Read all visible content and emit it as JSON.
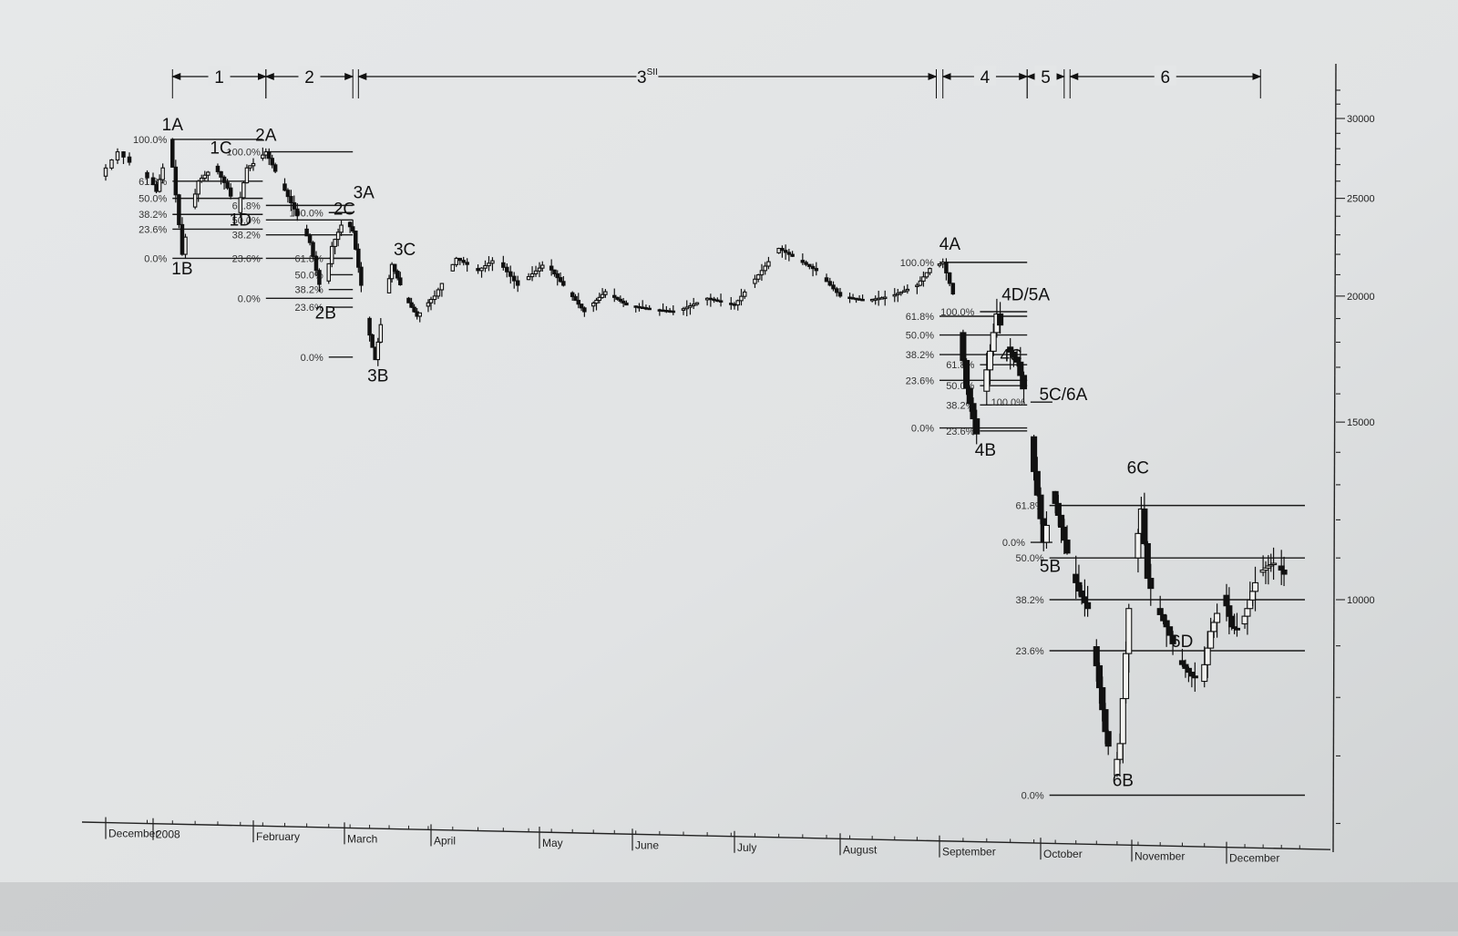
{
  "chart_data": {
    "type": "candlestick",
    "title": "",
    "xlabel": "",
    "ylabel": "",
    "y_scale": "log",
    "ylim": [
      5600,
      32000
    ],
    "y_ticks": [
      {
        "value": 30000,
        "label": "30000"
      },
      {
        "value": 25000,
        "label": "25000"
      },
      {
        "value": 20000,
        "label": "20000"
      },
      {
        "value": 15000,
        "label": "15000"
      },
      {
        "value": 10000,
        "label": "10000"
      }
    ],
    "x_ticks": [
      {
        "label": "December",
        "date": "2007-12-24"
      },
      {
        "label": "2008",
        "date": "2008-01-01"
      },
      {
        "label": "February",
        "date": "2008-02-01"
      },
      {
        "label": "March",
        "date": "2008-03-01"
      },
      {
        "label": "April",
        "date": "2008-04-01"
      },
      {
        "label": "May",
        "date": "2008-05-01"
      },
      {
        "label": "June",
        "date": "2008-06-01"
      },
      {
        "label": "July",
        "date": "2008-07-01"
      },
      {
        "label": "August",
        "date": "2008-08-01"
      },
      {
        "label": "September",
        "date": "2008-09-01"
      },
      {
        "label": "October",
        "date": "2008-10-01"
      },
      {
        "label": "November",
        "date": "2008-11-01"
      },
      {
        "label": "December",
        "date": "2008-12-01"
      }
    ],
    "waves": [
      {
        "label": "1",
        "from": "2008-01-07",
        "to": "2008-02-05"
      },
      {
        "label": "2",
        "from": "2008-02-05",
        "to": "2008-03-04"
      },
      {
        "label": "3",
        "superscript": "SII",
        "from": "2008-03-06",
        "to": "2008-08-31"
      },
      {
        "label": "4",
        "from": "2008-09-02",
        "to": "2008-09-27"
      },
      {
        "label": "5",
        "from": "2008-09-27",
        "to": "2008-10-09"
      },
      {
        "label": "6",
        "from": "2008-10-11",
        "to": "2008-12-14"
      }
    ],
    "wave_points": [
      {
        "label": "1A",
        "date": "2008-01-07",
        "value": 28600
      },
      {
        "label": "1B",
        "date": "2008-01-10",
        "value": 22000
      },
      {
        "label": "1C",
        "date": "2008-01-22",
        "value": 27000
      },
      {
        "label": "1D",
        "date": "2008-01-28",
        "value": 24200
      },
      {
        "label": "2A",
        "date": "2008-02-05",
        "value": 27800
      },
      {
        "label": "2B",
        "date": "2008-02-24",
        "value": 19900
      },
      {
        "label": "2C",
        "date": "2008-03-01",
        "value": 23900
      },
      {
        "label": "3A",
        "date": "2008-03-04",
        "value": 24300
      },
      {
        "label": "3B",
        "date": "2008-03-13",
        "value": 17300
      },
      {
        "label": "3C",
        "date": "2008-03-18",
        "value": 21600
      },
      {
        "label": "4A",
        "date": "2008-09-03",
        "value": 21600
      },
      {
        "label": "4D/5A",
        "date": "2008-09-19",
        "value": 19400
      },
      {
        "label": "4C",
        "date": "2008-09-19",
        "value": 17600
      },
      {
        "label": "4B",
        "date": "2008-09-13",
        "value": 14600
      },
      {
        "label": "5C/6A",
        "date": "2008-09-28",
        "value": 15900
      },
      {
        "label": "5B",
        "date": "2008-10-03",
        "value": 11200
      },
      {
        "label": "6C",
        "date": "2008-10-31",
        "value": 12900
      },
      {
        "label": "6D",
        "date": "2008-11-10",
        "value": 9200
      },
      {
        "label": "6B",
        "date": "2008-10-29",
        "value": 6900
      }
    ],
    "fib_retracements": [
      {
        "from": "2008-01-07",
        "to": "2008-02-04",
        "levels": [
          {
            "label": "100.0%",
            "value": 28600
          },
          {
            "label": "61.8%",
            "value": 26000
          },
          {
            "label": "50.0%",
            "value": 25000
          },
          {
            "label": "38.2%",
            "value": 24100
          },
          {
            "label": "23.6%",
            "value": 23300
          },
          {
            "label": "0.0%",
            "value": 21800
          }
        ]
      },
      {
        "from": "2008-02-05",
        "to": "2008-03-04",
        "levels": [
          {
            "label": "100.0%",
            "value": 27800
          },
          {
            "label": "61.8%",
            "value": 24600
          },
          {
            "label": "50.0%",
            "value": 23800
          },
          {
            "label": "38.2%",
            "value": 23000
          },
          {
            "label": "23.6%",
            "value": 21800
          },
          {
            "label": "0.0%",
            "value": 19900
          }
        ]
      },
      {
        "from": "2008-02-25",
        "to": "2008-03-04",
        "levels": [
          {
            "label": "100.0%",
            "value": 24200
          },
          {
            "label": "61.8%",
            "value": 21800
          },
          {
            "label": "50.0%",
            "value": 21000
          },
          {
            "label": "38.2%",
            "value": 20300
          },
          {
            "label": "23.6%",
            "value": 19500
          },
          {
            "label": "0.0%",
            "value": 17400
          }
        ]
      },
      {
        "from": "2008-09-01",
        "to": "2008-09-27",
        "levels": [
          {
            "label": "100.0%",
            "value": 21600
          },
          {
            "label": "61.8%",
            "value": 19100
          },
          {
            "label": "50.0%",
            "value": 18300
          },
          {
            "label": "38.2%",
            "value": 17500
          },
          {
            "label": "23.6%",
            "value": 16500
          },
          {
            "label": "0.0%",
            "value": 14800
          }
        ]
      },
      {
        "from": "2008-09-13",
        "to": "2008-09-27",
        "levels": [
          {
            "label": "100.0%",
            "value": 19300
          },
          {
            "label": "61.8%",
            "value": 17100
          },
          {
            "label": "50.0%",
            "value": 16300
          },
          {
            "label": "38.2%",
            "value": 15600
          },
          {
            "label": "23.6%",
            "value": 14700
          }
        ]
      },
      {
        "from": "2008-09-28",
        "to": "2008-10-05",
        "levels": [
          {
            "label": "100.0%",
            "value": 15700
          },
          {
            "label": "0.0%",
            "value": 11400
          }
        ]
      },
      {
        "from": "2008-10-04",
        "to": "2008-12-31",
        "levels": [
          {
            "label": "61.8%",
            "value": 12400
          },
          {
            "label": "50.0%",
            "value": 11000
          },
          {
            "label": "38.2%",
            "value": 10000
          },
          {
            "label": "23.6%",
            "value": 8900
          },
          {
            "label": "0.0%",
            "value": 6400
          }
        ]
      }
    ],
    "price_path": [
      {
        "date": "2007-12-24",
        "value": 26300
      },
      {
        "date": "2007-12-27",
        "value": 27800
      },
      {
        "date": "2008-01-01",
        "value": 26200
      },
      {
        "date": "2008-01-03",
        "value": 25400
      },
      {
        "date": "2008-01-05",
        "value": 26800
      },
      {
        "date": "2008-01-07",
        "value": 28600
      },
      {
        "date": "2008-01-09",
        "value": 25200
      },
      {
        "date": "2008-01-11",
        "value": 22000
      },
      {
        "date": "2008-01-13",
        "value": 23800
      },
      {
        "date": "2008-01-16",
        "value": 26000
      },
      {
        "date": "2008-01-21",
        "value": 26900
      },
      {
        "date": "2008-01-25",
        "value": 25600
      },
      {
        "date": "2008-01-28",
        "value": 24200
      },
      {
        "date": "2008-01-31",
        "value": 26800
      },
      {
        "date": "2008-02-03",
        "value": 27200
      },
      {
        "date": "2008-02-06",
        "value": 27800
      },
      {
        "date": "2008-02-10",
        "value": 26200
      },
      {
        "date": "2008-02-15",
        "value": 24400
      },
      {
        "date": "2008-02-20",
        "value": 22600
      },
      {
        "date": "2008-02-24",
        "value": 19900
      },
      {
        "date": "2008-02-27",
        "value": 22400
      },
      {
        "date": "2008-03-02",
        "value": 23900
      },
      {
        "date": "2008-03-05",
        "value": 23200
      },
      {
        "date": "2008-03-08",
        "value": 20500
      },
      {
        "date": "2008-03-11",
        "value": 18300
      },
      {
        "date": "2008-03-13",
        "value": 17300
      },
      {
        "date": "2008-03-16",
        "value": 19500
      },
      {
        "date": "2008-03-19",
        "value": 21500
      },
      {
        "date": "2008-03-24",
        "value": 19900
      },
      {
        "date": "2008-03-28",
        "value": 19100
      },
      {
        "date": "2008-04-03",
        "value": 20000
      },
      {
        "date": "2008-04-09",
        "value": 21800
      },
      {
        "date": "2008-04-15",
        "value": 21200
      },
      {
        "date": "2008-04-20",
        "value": 21800
      },
      {
        "date": "2008-04-26",
        "value": 20500
      },
      {
        "date": "2008-05-04",
        "value": 21600
      },
      {
        "date": "2008-05-10",
        "value": 20500
      },
      {
        "date": "2008-05-17",
        "value": 19300
      },
      {
        "date": "2008-05-24",
        "value": 20200
      },
      {
        "date": "2008-05-31",
        "value": 19600
      },
      {
        "date": "2008-06-08",
        "value": 19400
      },
      {
        "date": "2008-06-15",
        "value": 19300
      },
      {
        "date": "2008-06-24",
        "value": 19900
      },
      {
        "date": "2008-07-02",
        "value": 19600
      },
      {
        "date": "2008-07-10",
        "value": 21200
      },
      {
        "date": "2008-07-15",
        "value": 22300
      },
      {
        "date": "2008-07-20",
        "value": 21800
      },
      {
        "date": "2008-07-26",
        "value": 21200
      },
      {
        "date": "2008-08-02",
        "value": 20000
      },
      {
        "date": "2008-08-10",
        "value": 19800
      },
      {
        "date": "2008-08-18",
        "value": 20000
      },
      {
        "date": "2008-08-26",
        "value": 20500
      },
      {
        "date": "2008-08-30",
        "value": 21300
      },
      {
        "date": "2008-09-03",
        "value": 21600
      },
      {
        "date": "2008-09-06",
        "value": 20100
      },
      {
        "date": "2008-09-08",
        "value": 18400
      },
      {
        "date": "2008-09-10",
        "value": 16200
      },
      {
        "date": "2008-09-13",
        "value": 14600
      },
      {
        "date": "2008-09-16",
        "value": 16900
      },
      {
        "date": "2008-09-19",
        "value": 19200
      },
      {
        "date": "2008-09-22",
        "value": 17800
      },
      {
        "date": "2008-09-25",
        "value": 17200
      },
      {
        "date": "2008-09-28",
        "value": 15700
      },
      {
        "date": "2008-09-30",
        "value": 13400
      },
      {
        "date": "2008-10-03",
        "value": 11400
      },
      {
        "date": "2008-10-06",
        "value": 12800
      },
      {
        "date": "2008-10-09",
        "value": 11800
      },
      {
        "date": "2008-10-12",
        "value": 10800
      },
      {
        "date": "2008-10-15",
        "value": 10200
      },
      {
        "date": "2008-10-18",
        "value": 9800
      },
      {
        "date": "2008-10-21",
        "value": 8600
      },
      {
        "date": "2008-10-24",
        "value": 7400
      },
      {
        "date": "2008-10-27",
        "value": 6700
      },
      {
        "date": "2008-10-29",
        "value": 7200
      },
      {
        "date": "2008-11-01",
        "value": 9800
      },
      {
        "date": "2008-11-03",
        "value": 11000
      },
      {
        "date": "2008-11-05",
        "value": 12300
      },
      {
        "date": "2008-11-07",
        "value": 10500
      },
      {
        "date": "2008-11-10",
        "value": 9800
      },
      {
        "date": "2008-11-13",
        "value": 9400
      },
      {
        "date": "2008-11-17",
        "value": 8700
      },
      {
        "date": "2008-11-21",
        "value": 8400
      },
      {
        "date": "2008-11-24",
        "value": 8300
      },
      {
        "date": "2008-11-27",
        "value": 9300
      },
      {
        "date": "2008-12-01",
        "value": 10100
      },
      {
        "date": "2008-12-04",
        "value": 9400
      },
      {
        "date": "2008-12-07",
        "value": 9300
      },
      {
        "date": "2008-12-10",
        "value": 9800
      },
      {
        "date": "2008-12-14",
        "value": 10600
      },
      {
        "date": "2008-12-18",
        "value": 10800
      },
      {
        "date": "2008-12-21",
        "value": 10900
      },
      {
        "date": "2008-12-24",
        "value": 10600
      }
    ]
  }
}
